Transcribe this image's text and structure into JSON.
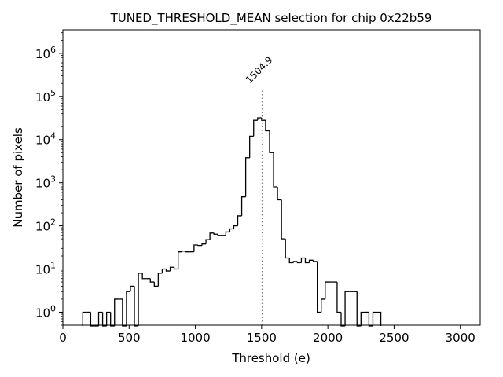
{
  "chart_data": {
    "type": "histogram",
    "title": "TUNED_THRESHOLD_MEAN selection for chip 0x22b59",
    "xlabel": "Threshold (e)",
    "ylabel": "Number of pixels",
    "xlim": [
      0,
      3150
    ],
    "ylim": [
      0.5,
      3500000
    ],
    "yscale": "log",
    "grid": false,
    "x_ticks": [
      {
        "value": 0,
        "label": "0"
      },
      {
        "value": 500,
        "label": "500"
      },
      {
        "value": 1000,
        "label": "1000"
      },
      {
        "value": 1500,
        "label": "1500"
      },
      {
        "value": 2000,
        "label": "2000"
      },
      {
        "value": 2500,
        "label": "2500"
      },
      {
        "value": 3000,
        "label": "3000"
      }
    ],
    "y_ticks": [
      {
        "value": 1,
        "base": "10",
        "exp": "0"
      },
      {
        "value": 10,
        "base": "10",
        "exp": "1"
      },
      {
        "value": 100,
        "base": "10",
        "exp": "2"
      },
      {
        "value": 1000,
        "base": "10",
        "exp": "3"
      },
      {
        "value": 10000,
        "base": "10",
        "exp": "4"
      },
      {
        "value": 100000,
        "base": "10",
        "exp": "5"
      },
      {
        "value": 1000000,
        "base": "10",
        "exp": "6"
      }
    ],
    "bins": {
      "start": 150,
      "width": 30,
      "counts": [
        1,
        1,
        0,
        0,
        1,
        0,
        1,
        0,
        2,
        2,
        0,
        3,
        4,
        0,
        8,
        6,
        6,
        5,
        4,
        8,
        10,
        9,
        11,
        10,
        25,
        26,
        25,
        25,
        36,
        35,
        38,
        48,
        68,
        64,
        60,
        60,
        72,
        85,
        100,
        170,
        470,
        3800,
        12000,
        28000,
        32000,
        28000,
        16000,
        5000,
        800,
        400,
        50,
        18,
        14,
        15,
        14,
        18,
        14,
        16,
        15,
        1,
        2,
        5,
        5,
        5,
        1,
        0,
        3,
        3,
        3,
        0,
        1,
        1,
        0,
        1,
        1
      ]
    },
    "annotation": {
      "x": 1504.9,
      "label": "1504.9",
      "line_top": 140000,
      "label_color": "#808080"
    },
    "colors": {
      "histogram": "#000000",
      "annotation": "#808080"
    }
  }
}
